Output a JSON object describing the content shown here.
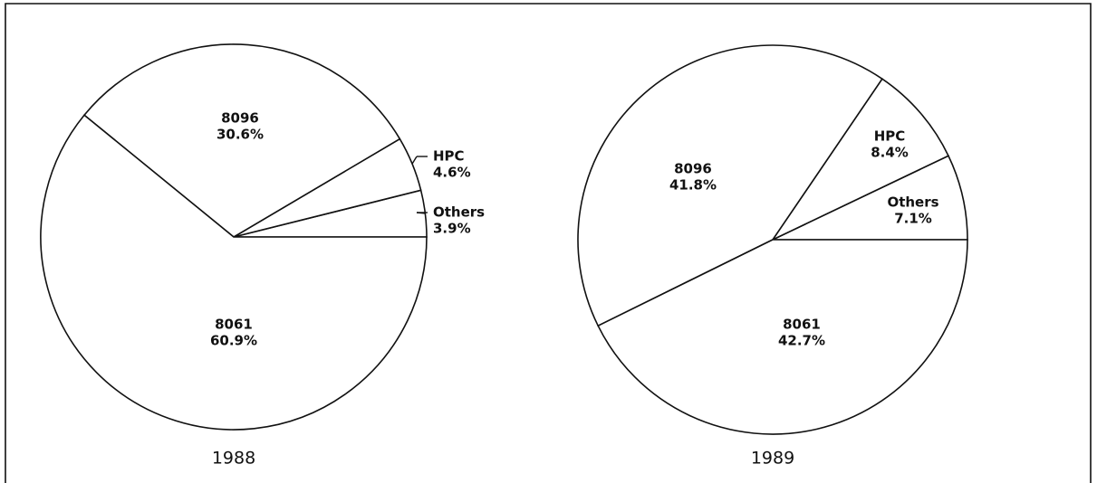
{
  "chart_data": [
    {
      "type": "pie",
      "title": "1988",
      "categories": [
        "Others",
        "HPC",
        "8096",
        "8061"
      ],
      "values": [
        3.9,
        4.6,
        30.6,
        60.9
      ],
      "value_labels": [
        "3.9%",
        "4.6%",
        "30.6%",
        "60.9%"
      ]
    },
    {
      "type": "pie",
      "title": "1989",
      "categories": [
        "Others",
        "HPC",
        "8096",
        "8061"
      ],
      "values": [
        7.1,
        8.4,
        41.8,
        42.7
      ],
      "value_labels": [
        "7.1%",
        "8.4%",
        "41.8%",
        "42.7%"
      ]
    }
  ]
}
